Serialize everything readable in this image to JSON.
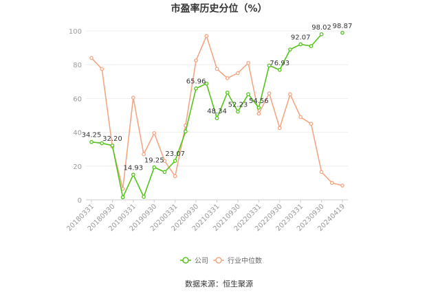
{
  "title": "市盈率历史分位（%）",
  "source": "数据来源：恒生聚源",
  "chart_data": {
    "type": "line",
    "title": "市盈率历史分位（%）",
    "ylim": [
      0,
      100
    ],
    "yticks": [
      0,
      20,
      40,
      60,
      80,
      100
    ],
    "x_tick_labels": [
      "20180331",
      "20180930",
      "20190331",
      "20190930",
      "20200331",
      "20200930",
      "20210331",
      "20210930",
      "20220331",
      "20220930",
      "20230331",
      "20230930",
      "20240419"
    ],
    "grid": true,
    "legend_position": "bottom-center",
    "series": [
      {
        "name": "公司",
        "color": "#52c41a",
        "values": [
          34.25,
          33.5,
          32.2,
          1.5,
          14.93,
          1.8,
          19.25,
          16.5,
          23.07,
          40.5,
          65.96,
          68.8,
          48.34,
          63.5,
          52.23,
          62.5,
          54.56,
          79.5,
          76.93,
          89.0,
          92.07,
          91.0,
          98.02,
          null,
          98.87
        ],
        "labels": {
          "0": "34.25",
          "2": "32.20",
          "4": "14.93",
          "6": "19.25",
          "8": "23.07",
          "10": "65.96",
          "12": "48.34",
          "14": "52.23",
          "16": "54.56",
          "18": "76.93",
          "20": "92.07",
          "22": "98.02",
          "24": "98.87"
        }
      },
      {
        "name": "行业中位数",
        "color": "#f4a582",
        "values": [
          84.0,
          77.5,
          31.5,
          6.5,
          60.5,
          27.0,
          39.5,
          23.0,
          14.0,
          44.0,
          82.5,
          97.0,
          77.5,
          72.0,
          75.0,
          81.0,
          51.0,
          63.0,
          42.5,
          62.5,
          49.0,
          45.0,
          16.5,
          10.0,
          8.5
        ]
      }
    ]
  }
}
